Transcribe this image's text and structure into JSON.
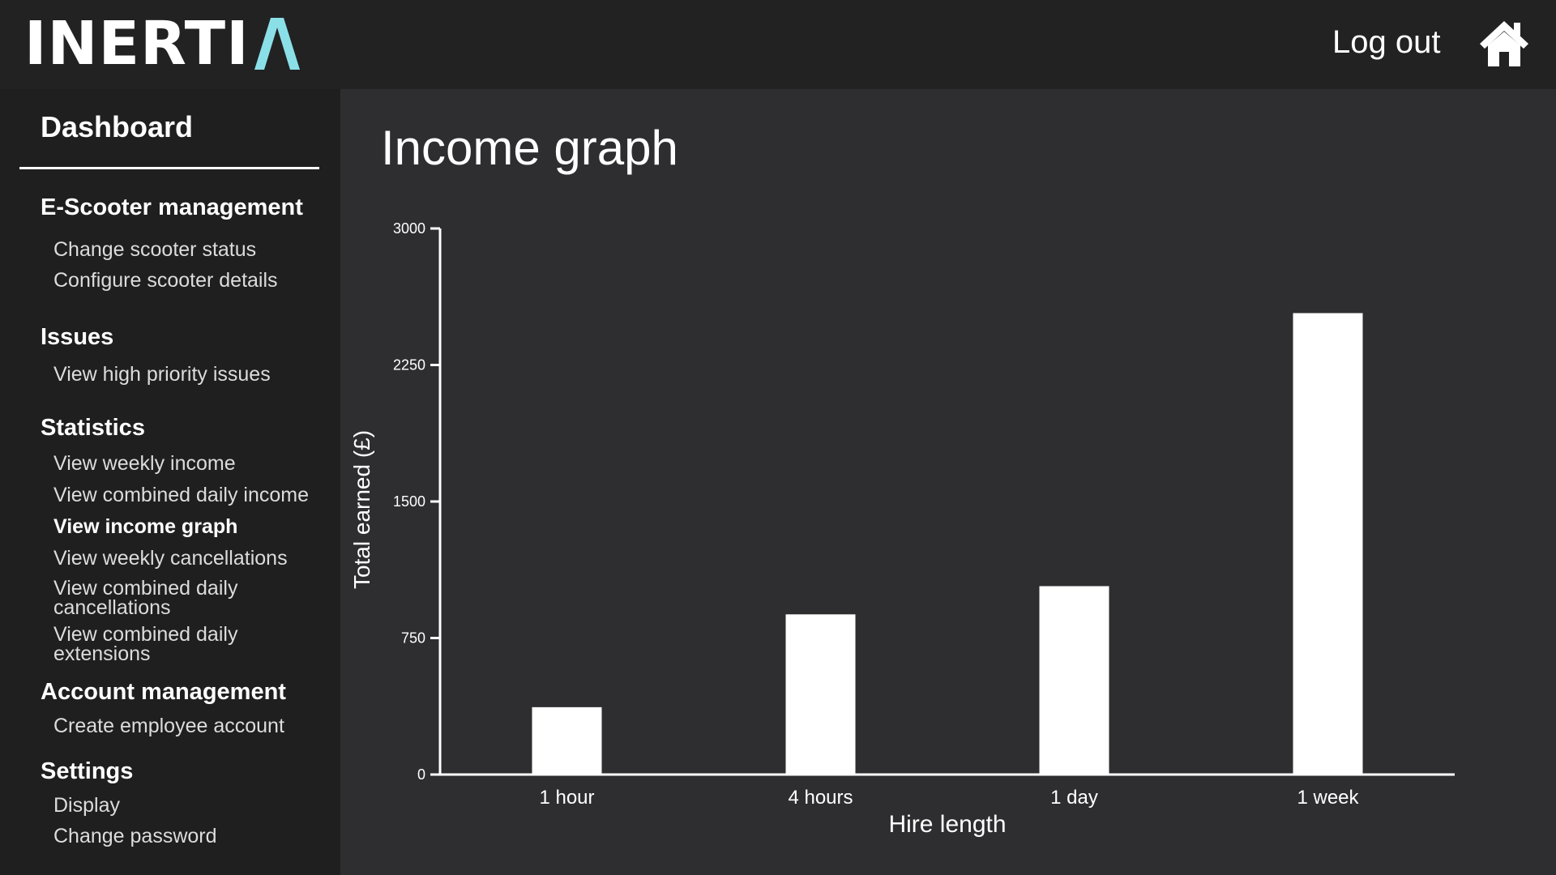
{
  "header": {
    "logo_text": "INERTI",
    "logo_accent_letter": "Λ",
    "logout_label": "Log out",
    "home_icon": "home-icon",
    "accent_color": "#8be0e8"
  },
  "sidebar": {
    "dashboard_label": "Dashboard",
    "sections": [
      {
        "title": "E-Scooter management",
        "items": [
          "Change scooter status",
          "Configure scooter details"
        ]
      },
      {
        "title": "Issues",
        "items": [
          "View high priority issues"
        ]
      },
      {
        "title": "Statistics",
        "items": [
          "View weekly income",
          "View combined daily income",
          "View income graph",
          "View weekly cancellations",
          "View combined daily cancellations",
          "View combined daily extensions"
        ]
      },
      {
        "title": "Account management",
        "items": [
          "Create employee account"
        ]
      },
      {
        "title": "Settings",
        "items": [
          "Display",
          "Change password"
        ]
      }
    ],
    "active_item": "View income graph"
  },
  "main": {
    "title": "Income graph"
  },
  "chart_data": {
    "type": "bar",
    "categories": [
      "1 hour",
      "4 hours",
      "1 day",
      "1 week"
    ],
    "values": [
      370,
      880,
      1035,
      2535
    ],
    "xlabel": "Hire length",
    "ylabel": "Total earned (£)",
    "ylim": [
      0,
      3000
    ],
    "yticks": [
      0,
      750,
      1500,
      2250,
      3000
    ],
    "grid": false,
    "bar_color": "#ffffff"
  }
}
